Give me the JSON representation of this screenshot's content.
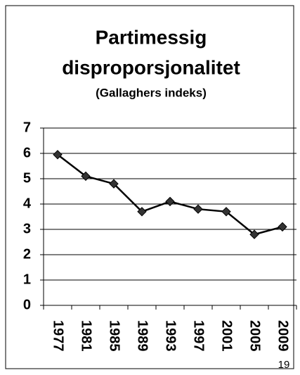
{
  "chart_data": {
    "type": "line",
    "title": [
      "Partimessig",
      "disproporsjonalitet"
    ],
    "subtitle": "(Gallaghers indeks)",
    "categories": [
      "1977",
      "1981",
      "1985",
      "1989",
      "1993",
      "1997",
      "2001",
      "2005",
      "2009"
    ],
    "values": [
      5.95,
      5.1,
      4.8,
      3.7,
      4.1,
      3.8,
      3.7,
      2.8,
      3.1
    ],
    "color": "#000000",
    "marker_color": "#333333",
    "ylim": [
      0,
      7
    ],
    "yticks": [
      0,
      1,
      2,
      3,
      4,
      5,
      6,
      7
    ],
    "grid": true
  },
  "page_number": "19"
}
